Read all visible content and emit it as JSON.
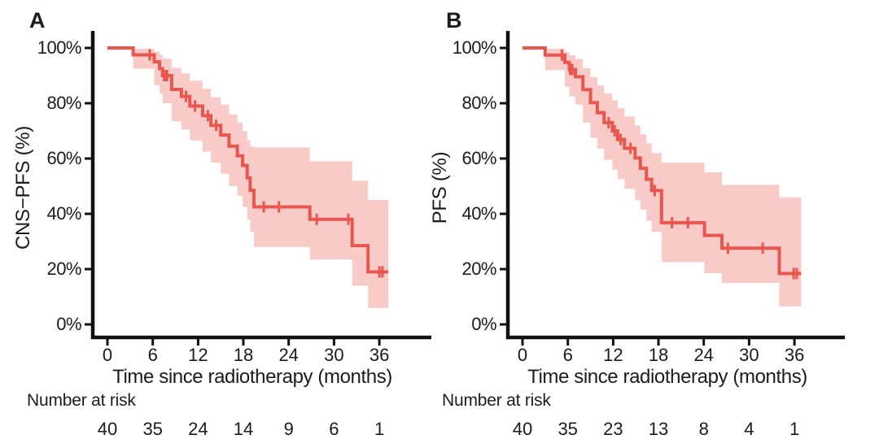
{
  "figure": {
    "background": "#ffffff",
    "text_color": "#1c1c1c",
    "curve_color": "#e7564f",
    "band_color": "#f9cbc8",
    "axis_color": "#111111"
  },
  "chart_data": [
    {
      "panel_label": "A",
      "type": "line",
      "subtype": "kaplan-meier-step-with-confidence-band",
      "ylabel": "CNS−PFS (%)",
      "xlabel": "Time since radiotherapy (months)",
      "xticks": [
        0,
        6,
        12,
        18,
        24,
        30,
        36
      ],
      "ytick_values": [
        0,
        20,
        40,
        60,
        80,
        100
      ],
      "ytick_labels": [
        "0%",
        "20%",
        "40%",
        "60%",
        "80%",
        "100%"
      ],
      "xlim": [
        0,
        42
      ],
      "ylim": [
        0,
        100
      ],
      "grid": false,
      "legend": "none",
      "end_time": 37.2,
      "steps": [
        [
          0,
          100
        ],
        [
          3.4,
          97.5
        ],
        [
          6.2,
          95
        ],
        [
          6.9,
          92.5
        ],
        [
          7.3,
          90
        ],
        [
          8.5,
          85
        ],
        [
          9.8,
          82.5
        ],
        [
          10.9,
          79
        ],
        [
          12.6,
          75.5
        ],
        [
          13.7,
          72
        ],
        [
          15.0,
          68.5
        ],
        [
          16.1,
          64.5
        ],
        [
          17.2,
          61
        ],
        [
          17.9,
          57.5
        ],
        [
          18.5,
          53
        ],
        [
          18.9,
          48.5
        ],
        [
          19.4,
          42.5
        ],
        [
          26.8,
          38
        ],
        [
          32.4,
          28.5
        ],
        [
          34.5,
          19
        ]
      ],
      "censor_marks": [
        [
          5.6,
          97.5
        ],
        [
          7.5,
          90
        ],
        [
          7.7,
          90
        ],
        [
          7.9,
          90
        ],
        [
          10.4,
          82.5
        ],
        [
          11.6,
          79
        ],
        [
          13.3,
          75.5
        ],
        [
          14.4,
          72
        ],
        [
          20.7,
          42.5
        ],
        [
          22.7,
          42.5
        ],
        [
          27.7,
          38
        ],
        [
          31.9,
          38
        ],
        [
          36.0,
          19
        ],
        [
          36.4,
          19
        ]
      ],
      "confidence_band": [
        [
          3.4,
          92.5,
          99.7
        ],
        [
          6.2,
          86.5,
          98.7
        ],
        [
          6.9,
          83.5,
          97.6
        ],
        [
          7.3,
          80.0,
          96.2
        ],
        [
          8.5,
          73.5,
          92.8
        ],
        [
          9.8,
          70.5,
          90.8
        ],
        [
          10.9,
          66.5,
          88.2
        ],
        [
          12.6,
          62.5,
          85.2
        ],
        [
          13.7,
          58.5,
          82.2
        ],
        [
          15.0,
          54.5,
          79.5
        ],
        [
          16.1,
          50.0,
          76.0
        ],
        [
          17.2,
          46.5,
          73.0
        ],
        [
          17.9,
          42.5,
          70.0
        ],
        [
          18.5,
          38.0,
          66.5
        ],
        [
          18.9,
          33.5,
          64.5
        ],
        [
          19.4,
          28.0,
          64.0
        ],
        [
          26.8,
          23.5,
          59.0
        ],
        [
          32.4,
          14.0,
          52.0
        ],
        [
          34.5,
          6.0,
          45.0
        ]
      ],
      "risk_label": "Number at risk",
      "number_at_risk": [
        40,
        35,
        24,
        14,
        9,
        6,
        1
      ]
    },
    {
      "panel_label": "B",
      "type": "line",
      "subtype": "kaplan-meier-step-with-confidence-band",
      "ylabel": "PFS (%)",
      "xlabel": "Time since radiotherapy (months)",
      "xticks": [
        0,
        6,
        12,
        18,
        24,
        30,
        36
      ],
      "ytick_values": [
        0,
        20,
        40,
        60,
        80,
        100
      ],
      "ytick_labels": [
        "0%",
        "20%",
        "40%",
        "60%",
        "80%",
        "100%"
      ],
      "xlim": [
        0,
        42
      ],
      "ylim": [
        0,
        100
      ],
      "grid": false,
      "legend": "none",
      "end_time": 36.9,
      "steps": [
        [
          0,
          100
        ],
        [
          3.0,
          97.4
        ],
        [
          5.6,
          94.8
        ],
        [
          6.2,
          92.2
        ],
        [
          7.0,
          89.6
        ],
        [
          8.0,
          84.9
        ],
        [
          9.0,
          80.2
        ],
        [
          9.9,
          76.6
        ],
        [
          10.8,
          73.0
        ],
        [
          11.9,
          70.0
        ],
        [
          12.6,
          66.9
        ],
        [
          13.5,
          63.7
        ],
        [
          14.9,
          60.2
        ],
        [
          15.6,
          56.5
        ],
        [
          16.4,
          52.5
        ],
        [
          17.1,
          48.4
        ],
        [
          18.4,
          36.8
        ],
        [
          24.1,
          32.2
        ],
        [
          26.4,
          27.6
        ],
        [
          34.0,
          18.4
        ]
      ],
      "censor_marks": [
        [
          5.2,
          97.4
        ],
        [
          6.3,
          92.2
        ],
        [
          6.6,
          92.2
        ],
        [
          11.4,
          73.0
        ],
        [
          12.2,
          70.0
        ],
        [
          13.0,
          66.9
        ],
        [
          14.3,
          63.7
        ],
        [
          17.5,
          48.4
        ],
        [
          19.8,
          36.8
        ],
        [
          21.9,
          36.8
        ],
        [
          27.2,
          27.6
        ],
        [
          31.8,
          27.6
        ],
        [
          35.9,
          18.4
        ],
        [
          36.3,
          18.4
        ]
      ],
      "confidence_band": [
        [
          3.0,
          92.0,
          99.7
        ],
        [
          5.6,
          86.0,
          98.6
        ],
        [
          6.2,
          82.5,
          97.4
        ],
        [
          7.0,
          79.5,
          96.0
        ],
        [
          8.0,
          73.0,
          92.7
        ],
        [
          9.0,
          67.5,
          89.5
        ],
        [
          9.9,
          63.5,
          86.5
        ],
        [
          10.8,
          59.5,
          83.5
        ],
        [
          11.9,
          56.0,
          81.0
        ],
        [
          12.6,
          52.5,
          78.2
        ],
        [
          13.5,
          49.0,
          75.2
        ],
        [
          14.9,
          45.0,
          72.0
        ],
        [
          15.6,
          41.5,
          68.8
        ],
        [
          16.4,
          37.5,
          65.5
        ],
        [
          17.1,
          33.5,
          62.0
        ],
        [
          18.4,
          22.5,
          58.5
        ],
        [
          24.1,
          18.5,
          55.0
        ],
        [
          26.4,
          15.0,
          50.5
        ],
        [
          34.0,
          6.5,
          46.0
        ]
      ],
      "risk_label": "Number at risk",
      "number_at_risk": [
        40,
        35,
        23,
        13,
        8,
        4,
        1
      ]
    }
  ]
}
